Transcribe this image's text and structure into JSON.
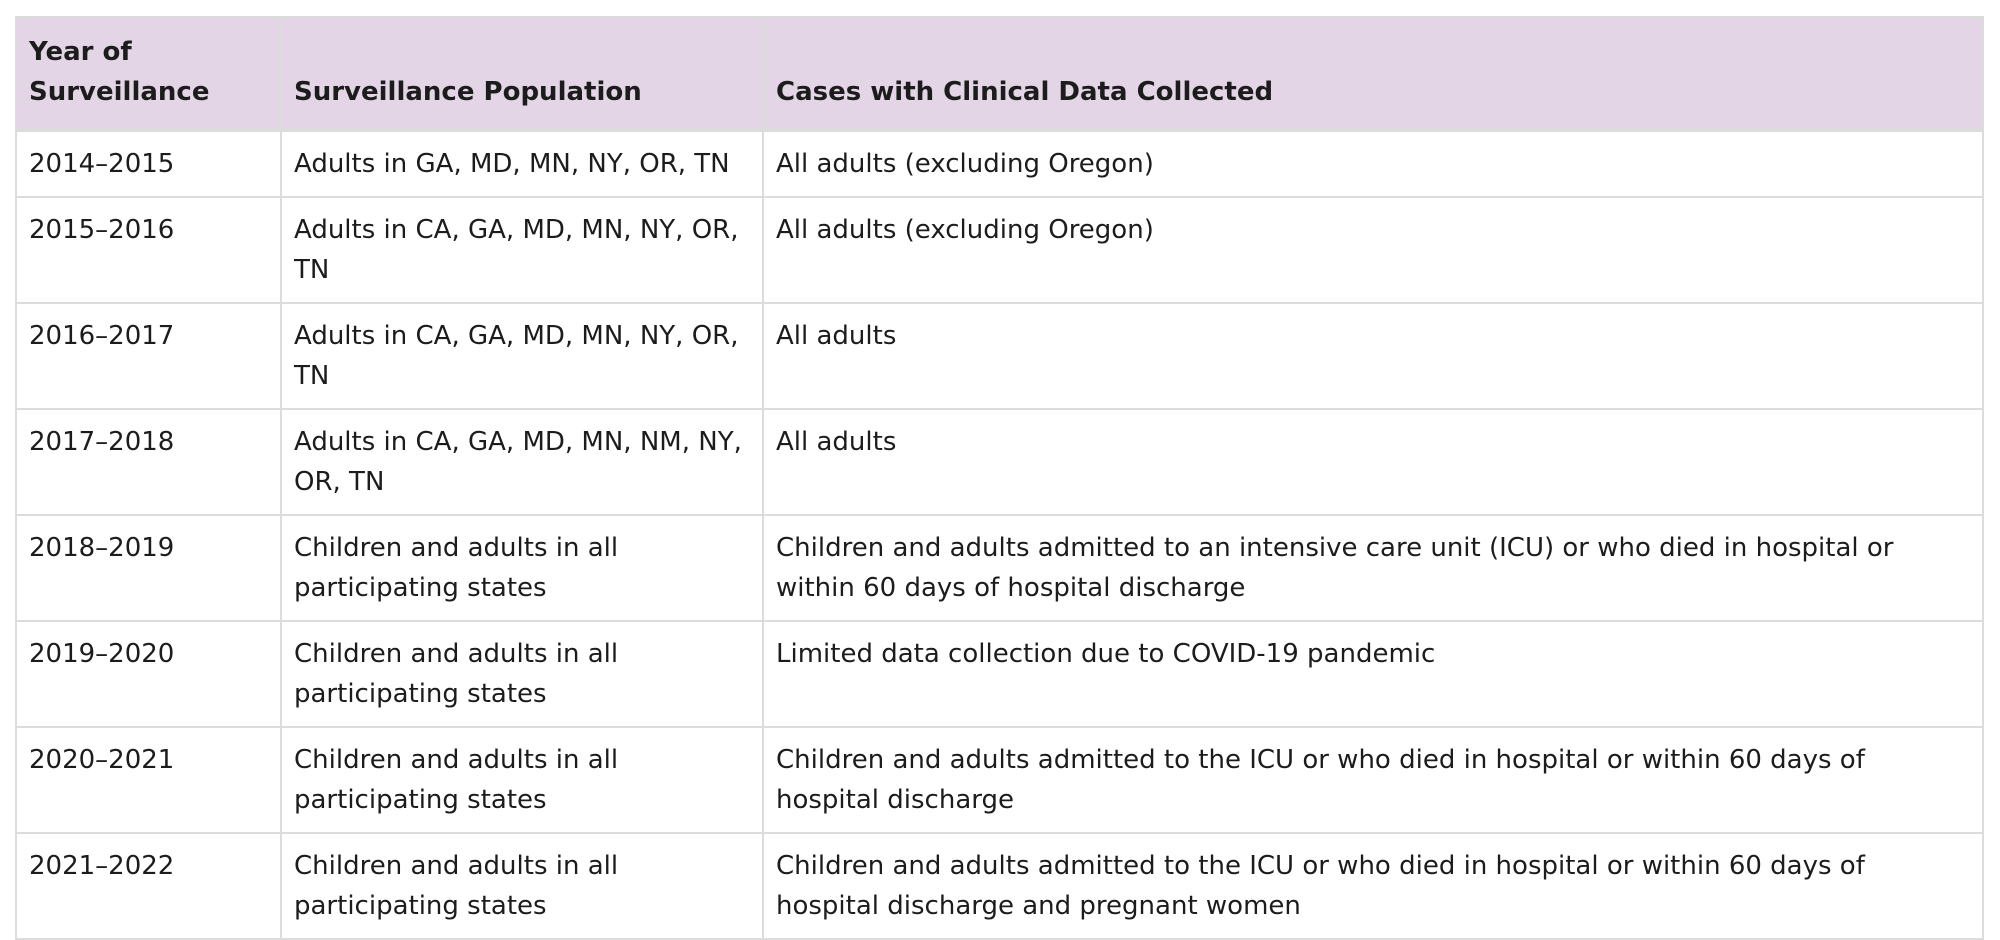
{
  "table": {
    "headers": [
      "Year of Surveillance",
      "Surveillance Population",
      "Cases with Clinical Data Collected"
    ],
    "header_color": "#e3d5e6",
    "rows": [
      [
        "2014–2015",
        "Adults in GA, MD, MN, NY, OR, TN",
        "All adults (excluding Oregon)"
      ],
      [
        "2015–2016",
        "Adults in CA, GA, MD, MN, NY, OR, TN",
        "All adults (excluding Oregon)"
      ],
      [
        "2016–2017",
        "Adults in CA, GA, MD, MN, NY, OR, TN",
        "All adults"
      ],
      [
        "2017–2018",
        "Adults in CA, GA, MD, MN, NM, NY, OR, TN",
        "All adults"
      ],
      [
        "2018–2019",
        "Children and adults in all participating states",
        "Children and adults admitted to an intensive care unit (ICU) or who died in hospital or within 60 days of hospital discharge"
      ],
      [
        "2019–2020",
        "Children and adults in all participating states",
        "Limited data collection due to COVID-19 pandemic"
      ],
      [
        "2020–2021",
        "Children and adults in all participating states",
        "Children and adults admitted to the ICU or who died in hospital or within 60 days of hospital discharge"
      ],
      [
        "2021–2022",
        "Children and adults in all participating states",
        "Children and adults admitted to the ICU or who died in hospital or within 60 days of hospital discharge and pregnant women"
      ]
    ]
  }
}
